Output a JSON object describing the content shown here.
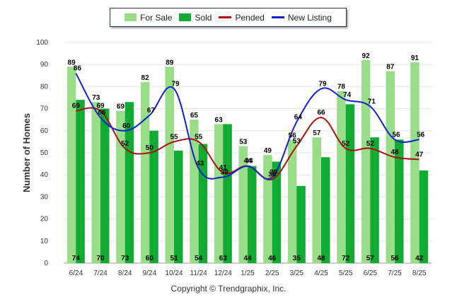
{
  "legend": {
    "items": [
      {
        "label": "For Sale",
        "color": "#99dd88",
        "kind": "bar"
      },
      {
        "label": "Sold",
        "color": "#11aa33",
        "kind": "bar"
      },
      {
        "label": "Pended",
        "color": "#aa1111",
        "kind": "line"
      },
      {
        "label": "New Listing",
        "color": "#1122cc",
        "kind": "line"
      }
    ]
  },
  "footer": "Copyright © Trendgraphix, Inc.",
  "chart_data": {
    "type": "bar",
    "ylabel": "Number of Homes",
    "xlabel": "",
    "ylim": [
      0,
      100
    ],
    "yticks": [
      0,
      10,
      20,
      30,
      40,
      50,
      60,
      70,
      80,
      90,
      100
    ],
    "grid": true,
    "legend_position": "top-center",
    "categories": [
      "6/24",
      "7/24",
      "8/24",
      "9/24",
      "10/24",
      "11/24",
      "12/24",
      "1/25",
      "2/25",
      "3/25",
      "4/25",
      "5/25",
      "6/25",
      "7/25",
      "8/25"
    ],
    "series": [
      {
        "name": "For Sale",
        "type": "bar",
        "color": "#99dd88",
        "values": [
          89,
          73,
          69,
          82,
          89,
          65,
          63,
          53,
          49,
          56,
          57,
          78,
          92,
          87,
          91
        ]
      },
      {
        "name": "Sold",
        "type": "bar",
        "color": "#11aa33",
        "values": [
          74,
          70,
          73,
          60,
          51,
          54,
          63,
          44,
          46,
          35,
          48,
          72,
          57,
          56,
          42
        ]
      },
      {
        "name": "Pended",
        "type": "line",
        "color": "#aa1111",
        "values": [
          69,
          69,
          52,
          50,
          55,
          55,
          41,
          44,
          38,
          53,
          66,
          52,
          52,
          48,
          47
        ]
      },
      {
        "name": "New Listing",
        "type": "line",
        "color": "#1122cc",
        "values": [
          86,
          66,
          60,
          67,
          79,
          43,
          39,
          44,
          39,
          64,
          79,
          74,
          71,
          56,
          56
        ]
      }
    ]
  }
}
